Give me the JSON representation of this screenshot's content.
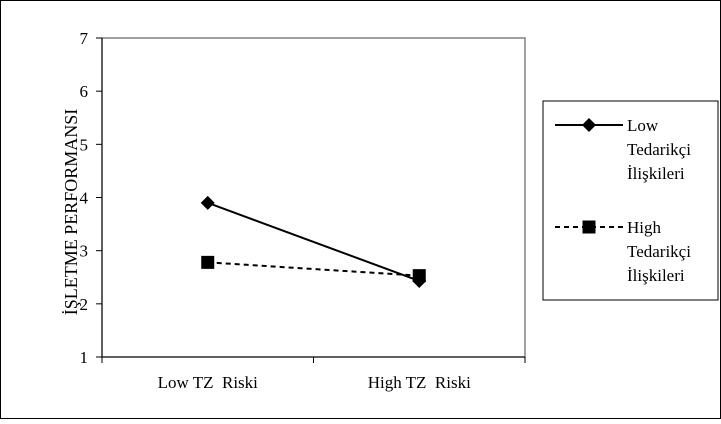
{
  "chart_data": {
    "type": "line",
    "title": "",
    "xlabel": "",
    "ylabel": "İŞLETME PERFORMANSI",
    "categories": [
      "Low TZ  Riski",
      "High TZ  Riski"
    ],
    "ylim": [
      1,
      7
    ],
    "yticks": [
      1,
      2,
      3,
      4,
      5,
      6,
      7
    ],
    "grid": false,
    "legend_position": "right",
    "series": [
      {
        "name": "Low Tedarikçi İlişkileri",
        "legend_lines": [
          "Low",
          "Tedarikçi",
          "İlişkileri"
        ],
        "values": [
          3.9,
          2.43
        ],
        "marker": "diamond",
        "line_style": "solid",
        "color": "#000000"
      },
      {
        "name": "High Tedarikçi İlişkileri",
        "legend_lines": [
          "High",
          "Tedarikçi",
          "İlişkileri"
        ],
        "values": [
          2.78,
          2.53
        ],
        "marker": "square",
        "line_style": "dashed",
        "color": "#000000"
      }
    ]
  },
  "colors": {
    "plot_border": "#808080",
    "axis": "#000000",
    "background": "#ffffff"
  }
}
